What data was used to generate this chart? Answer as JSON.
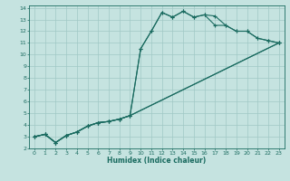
{
  "xlabel": "Humidex (Indice chaleur)",
  "xlim": [
    -0.5,
    23.5
  ],
  "ylim": [
    2,
    14.2
  ],
  "xticks": [
    0,
    1,
    2,
    3,
    4,
    5,
    6,
    7,
    8,
    9,
    10,
    11,
    12,
    13,
    14,
    15,
    16,
    17,
    18,
    19,
    20,
    21,
    22,
    23
  ],
  "yticks": [
    2,
    3,
    4,
    5,
    6,
    7,
    8,
    9,
    10,
    11,
    12,
    13,
    14
  ],
  "bg_color": "#c5e3e0",
  "grid_color": "#a0c8c5",
  "line_color": "#1a6b60",
  "line1_x": [
    0,
    1,
    2,
    3,
    4,
    5,
    6,
    7,
    8,
    9,
    10,
    11,
    12,
    13,
    14,
    15,
    16,
    17,
    18,
    19,
    20,
    21,
    22,
    23
  ],
  "line1_y": [
    3.0,
    3.2,
    2.5,
    3.1,
    3.4,
    3.9,
    4.2,
    4.3,
    4.5,
    4.8,
    10.5,
    12.0,
    13.6,
    13.2,
    13.7,
    13.2,
    13.4,
    13.3,
    12.5,
    12.0,
    12.0,
    11.4,
    11.2,
    11.0
  ],
  "line2_x": [
    0,
    1,
    2,
    3,
    4,
    5,
    6,
    7,
    8,
    9,
    10,
    11,
    12,
    13,
    14,
    15,
    16,
    17,
    18,
    19,
    20,
    21,
    22,
    23
  ],
  "line2_y": [
    3.0,
    3.2,
    2.5,
    3.1,
    3.4,
    3.9,
    4.2,
    4.3,
    4.5,
    4.8,
    10.5,
    12.0,
    13.6,
    13.2,
    13.7,
    13.2,
    13.4,
    12.5,
    12.5,
    12.0,
    12.0,
    11.4,
    11.2,
    11.0
  ],
  "line3_x": [
    0,
    1,
    2,
    3,
    4,
    5,
    6,
    7,
    8,
    9,
    23
  ],
  "line3_y": [
    3.0,
    3.2,
    2.5,
    3.1,
    3.4,
    3.9,
    4.2,
    4.3,
    4.5,
    4.8,
    11.0
  ],
  "line4_x": [
    0,
    1,
    2,
    3,
    4,
    5,
    6,
    7,
    8,
    9,
    23
  ],
  "line4_y": [
    3.0,
    3.2,
    2.5,
    3.1,
    3.4,
    3.9,
    4.2,
    4.3,
    4.5,
    4.8,
    11.0
  ]
}
